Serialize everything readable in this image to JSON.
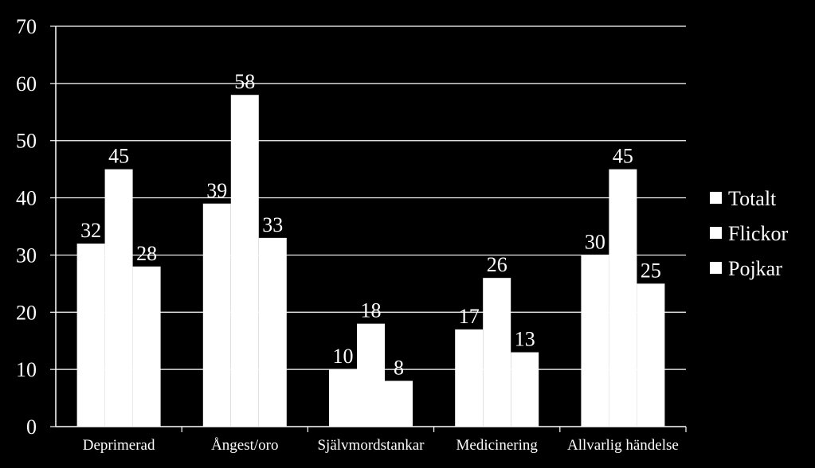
{
  "chart_data": {
    "type": "bar",
    "categories": [
      "Deprimerad",
      "Ångest/oro",
      "Självmordstankar",
      "Medicinering",
      "Allvarlig händelse"
    ],
    "series": [
      {
        "name": "Totalt",
        "values": [
          32,
          39,
          10,
          17,
          30
        ]
      },
      {
        "name": "Flickor",
        "values": [
          45,
          58,
          18,
          26,
          45
        ]
      },
      {
        "name": "Pojkar",
        "values": [
          28,
          33,
          8,
          13,
          25
        ]
      }
    ],
    "title": "",
    "xlabel": "",
    "ylabel": "",
    "ylim": [
      0,
      70
    ],
    "yticks": [
      0,
      10,
      20,
      30,
      40,
      50,
      60,
      70
    ],
    "grid": true,
    "legend": "right",
    "data_labels": true,
    "colors": {
      "background": "#000000",
      "bars": "#ffffff",
      "grid": "#ffffff",
      "text": "#ffffff"
    }
  }
}
